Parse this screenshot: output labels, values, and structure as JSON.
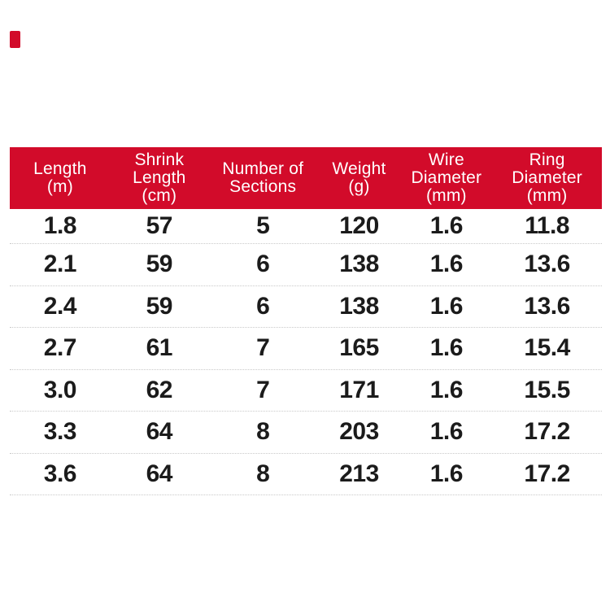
{
  "page": {
    "background": "#ffffff"
  },
  "colors": {
    "header_bg": "#d20b2a",
    "header_text": "#ffffff",
    "body_text": "#1b1b1b",
    "row_separator": "#c9c9c9"
  },
  "corner_mark": {
    "color": "#d20b2a"
  },
  "chart_data": {
    "type": "table",
    "title": "",
    "columns": [
      {
        "label": "Length (m)",
        "lines": [
          "Length",
          "(m)"
        ]
      },
      {
        "label": "Shrink Length (cm)",
        "lines": [
          "Shrink",
          "Length",
          "(cm)"
        ]
      },
      {
        "label": "Number of Sections",
        "lines": [
          "Number of",
          "Sections"
        ]
      },
      {
        "label": "Weight (g)",
        "lines": [
          "Weight",
          "(g)"
        ]
      },
      {
        "label": "Wire Diameter (mm)",
        "lines": [
          "Wire",
          "Diameter",
          "(mm)"
        ]
      },
      {
        "label": "Ring Diameter (mm)",
        "lines": [
          "Ring",
          "Diameter",
          "(mm)"
        ]
      }
    ],
    "rows": [
      [
        "1.8",
        "57",
        "5",
        "120",
        "1.6",
        "11.8"
      ],
      [
        "2.1",
        "59",
        "6",
        "138",
        "1.6",
        "13.6"
      ],
      [
        "2.4",
        "59",
        "6",
        "138",
        "1.6",
        "13.6"
      ],
      [
        "2.7",
        "61",
        "7",
        "165",
        "1.6",
        "15.4"
      ],
      [
        "3.0",
        "62",
        "7",
        "171",
        "1.6",
        "15.5"
      ],
      [
        "3.3",
        "64",
        "8",
        "203",
        "1.6",
        "17.2"
      ],
      [
        "3.6",
        "64",
        "8",
        "213",
        "1.6",
        "17.2"
      ]
    ],
    "layout": {
      "header_position": "top",
      "grid": "dotted horizontal separators only",
      "legend": "none"
    }
  }
}
